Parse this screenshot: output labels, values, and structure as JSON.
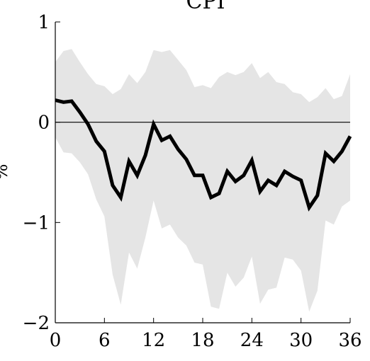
{
  "chart_data": {
    "type": "line",
    "title": "CPI",
    "xlabel": "",
    "ylabel": "%",
    "xlim": [
      0,
      36
    ],
    "ylim": [
      -2,
      1
    ],
    "xticks": [
      0,
      6,
      12,
      18,
      24,
      30,
      36
    ],
    "yticks": [
      -2,
      -1,
      0,
      1
    ],
    "x_tick_labels": [
      "0",
      "6",
      "12",
      "18",
      "24",
      "30",
      "36"
    ],
    "y_tick_labels": [
      "−2",
      "−1",
      "0",
      "1"
    ],
    "zero_line": true,
    "grid": false,
    "colors": {
      "line": "#000000",
      "band": "#e5e5e5",
      "axis": "#000000"
    },
    "series": [
      {
        "role": "point estimate",
        "x": [
          0,
          1,
          2,
          3,
          4,
          5,
          6,
          7,
          8,
          9,
          10,
          11,
          12,
          13,
          14,
          15,
          16,
          17,
          18,
          19,
          20,
          21,
          22,
          23,
          24,
          25,
          26,
          27,
          28,
          29,
          30,
          31,
          32,
          33,
          34,
          35,
          36
        ],
        "values": [
          0.22,
          0.2,
          0.21,
          0.1,
          -0.02,
          -0.19,
          -0.29,
          -0.63,
          -0.75,
          -0.39,
          -0.53,
          -0.33,
          -0.02,
          -0.18,
          -0.14,
          -0.27,
          -0.37,
          -0.53,
          -0.53,
          -0.75,
          -0.71,
          -0.49,
          -0.59,
          -0.53,
          -0.38,
          -0.69,
          -0.58,
          -0.63,
          -0.49,
          -0.54,
          -0.58,
          -0.85,
          -0.73,
          -0.31,
          -0.39,
          -0.29,
          -0.14
        ]
      },
      {
        "role": "confidence band",
        "x": [
          0,
          1,
          2,
          3,
          4,
          5,
          6,
          7,
          8,
          9,
          10,
          11,
          12,
          13,
          14,
          15,
          16,
          17,
          18,
          19,
          20,
          21,
          22,
          23,
          24,
          25,
          26,
          27,
          28,
          29,
          30,
          31,
          32,
          33,
          34,
          35,
          36
        ],
        "upper": [
          0.6,
          0.71,
          0.73,
          0.6,
          0.48,
          0.38,
          0.36,
          0.28,
          0.33,
          0.48,
          0.39,
          0.5,
          0.72,
          0.7,
          0.72,
          0.62,
          0.52,
          0.35,
          0.37,
          0.34,
          0.45,
          0.5,
          0.47,
          0.5,
          0.59,
          0.44,
          0.5,
          0.4,
          0.38,
          0.3,
          0.28,
          0.2,
          0.25,
          0.34,
          0.23,
          0.26,
          0.48
        ],
        "lower": [
          -0.15,
          -0.3,
          -0.31,
          -0.4,
          -0.52,
          -0.77,
          -0.94,
          -1.52,
          -1.82,
          -1.3,
          -1.46,
          -1.15,
          -0.78,
          -1.06,
          -1.02,
          -1.15,
          -1.23,
          -1.4,
          -1.42,
          -1.84,
          -1.86,
          -1.5,
          -1.64,
          -1.55,
          -1.34,
          -1.81,
          -1.67,
          -1.65,
          -1.35,
          -1.37,
          -1.48,
          -1.89,
          -1.68,
          -0.98,
          -1.02,
          -0.84,
          -0.78
        ]
      }
    ]
  }
}
